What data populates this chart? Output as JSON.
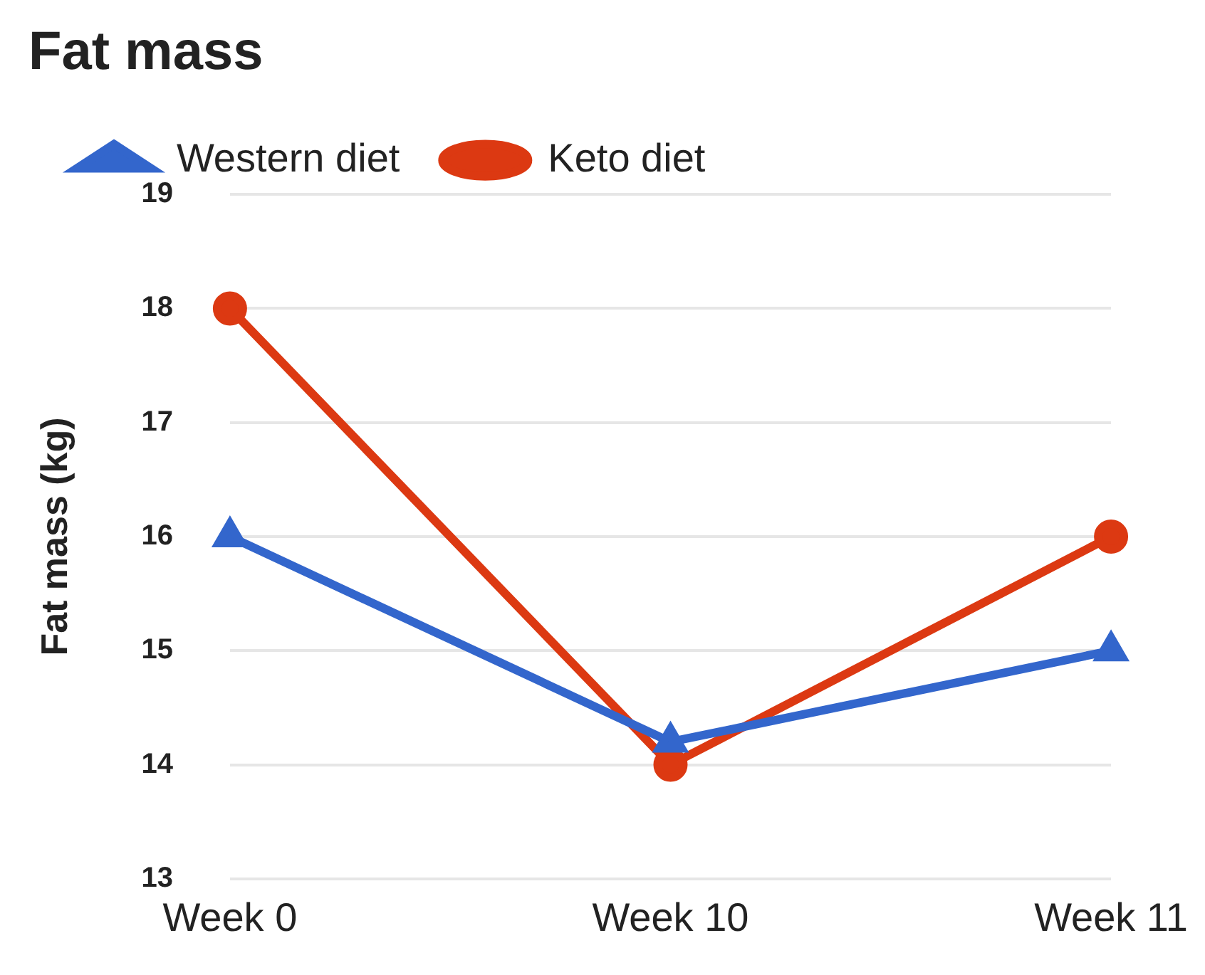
{
  "chart_data": {
    "type": "line",
    "title": "Fat mass",
    "ylabel": "Fat mass (kg)",
    "categories": [
      "Week 0",
      "Week 10",
      "Week 11"
    ],
    "series": [
      {
        "name": "Western diet",
        "color": "#3366cc",
        "values": [
          16,
          14.2,
          15
        ],
        "marker": "triangle"
      },
      {
        "name": "Keto diet",
        "color": "#dc3912",
        "values": [
          18,
          14,
          16
        ],
        "marker": "circle"
      }
    ],
    "ylim": [
      13,
      19
    ],
    "yticks": [
      13,
      14,
      15,
      16,
      17,
      18,
      19
    ],
    "grid": "y",
    "legend": "top left",
    "line_style": "solid"
  }
}
